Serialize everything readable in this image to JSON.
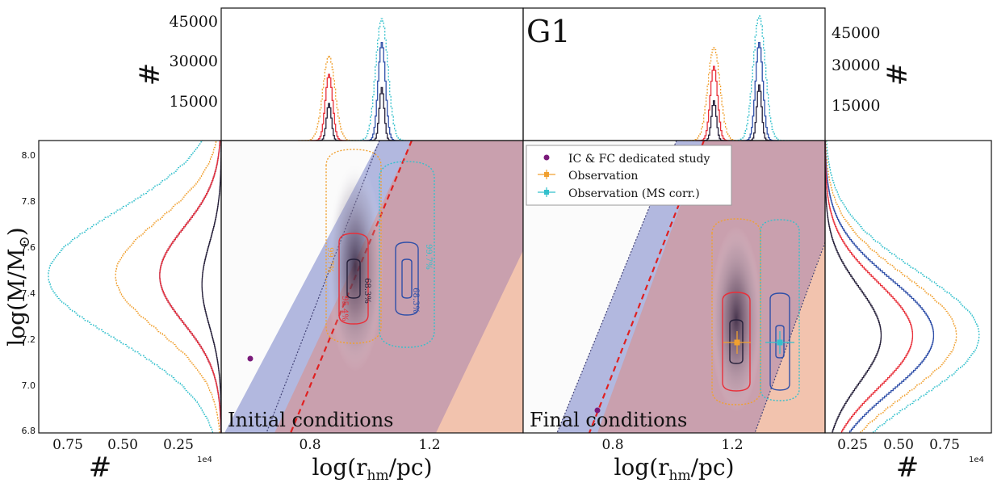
{
  "colors": {
    "dark": "#26203a",
    "red": "#e8303a",
    "blue": "#2f4fa8",
    "orange": "#f0a030",
    "cyan": "#33c0cc",
    "purple": "#7a1a7a",
    "band_blue": "#aab0dc",
    "band_mauve": "#cc9ba6",
    "band_peach": "#f6c7ae"
  },
  "figure": {
    "ylabel_left": "log(M/M",
    "ylabel_sun": "⊙",
    "hist_label": "#",
    "xlabel_main": "log(r",
    "xlabel_sub": "hm",
    "xlabel_tail": "/pc)",
    "sci_offset": "1e4",
    "panel_title": "G1"
  },
  "chart_data": [
    {
      "type": "histogram",
      "panel": "top-left",
      "axis": "log(r_hm/pc)",
      "ylabel": "#",
      "yticks": [
        15000,
        30000,
        45000
      ],
      "ylim": [
        0,
        50000
      ],
      "peaks": [
        {
          "series": "orange",
          "center": 0.955,
          "height": 32000
        },
        {
          "series": "red",
          "center": 0.955,
          "height": 25000
        },
        {
          "series": "dark",
          "center": 0.955,
          "height": 14000
        },
        {
          "series": "cyan",
          "center": 1.13,
          "height": 46000
        },
        {
          "series": "blue",
          "center": 1.13,
          "height": 37000
        },
        {
          "series": "dark",
          "center": 1.13,
          "height": 20000
        }
      ]
    },
    {
      "type": "histogram",
      "panel": "top-right",
      "title": "G1",
      "axis": "log(r_hm/pc)",
      "ylabel": "#",
      "yticks": [
        15000,
        30000,
        45000
      ],
      "ylim": [
        0,
        50000
      ],
      "peaks": [
        {
          "series": "orange",
          "center": 1.23,
          "height": 35000
        },
        {
          "series": "red",
          "center": 1.23,
          "height": 28000
        },
        {
          "series": "dark",
          "center": 1.23,
          "height": 15000
        },
        {
          "series": "cyan",
          "center": 1.38,
          "height": 47000
        },
        {
          "series": "blue",
          "center": 1.38,
          "height": 37000
        },
        {
          "series": "dark",
          "center": 1.38,
          "height": 21000
        }
      ]
    },
    {
      "type": "histogram",
      "panel": "left",
      "orientation": "horizontal",
      "axis": "log(M/M_sun)",
      "xlabel": "#",
      "xticks": [
        "0.75",
        "0.50",
        "0.25"
      ],
      "xlim": [
        0.95,
        0
      ],
      "ylim": [
        6.78,
        8.05
      ],
      "yticks": [
        6.8,
        7.0,
        7.2,
        7.4,
        7.6,
        7.8,
        8.0
      ],
      "peaks": [
        {
          "series": "cyan",
          "center": 7.46,
          "width": 0.9
        },
        {
          "series": "orange",
          "center": 7.46,
          "width": 0.55
        },
        {
          "series": "blue",
          "center": 7.46,
          "width": 0.32
        },
        {
          "series": "red",
          "center": 7.46,
          "width": 0.32
        },
        {
          "series": "dark",
          "center": 7.42,
          "width": 0.1
        }
      ]
    },
    {
      "type": "scatter",
      "panel": "initial",
      "label": "Initial conditions",
      "xlabel": "log(r_hm/pc)",
      "xticks": [
        0.8,
        1.2
      ],
      "xlim": [
        0.6,
        1.6
      ],
      "ylim": [
        6.78,
        8.05
      ],
      "contour_labels": [
        "99.7%",
        "95.4%",
        "68.3%",
        "68.3%",
        "99.7%"
      ],
      "points": [
        {
          "x": 0.7,
          "y": 7.1,
          "series": "IC & FC dedicated study"
        }
      ]
    },
    {
      "type": "scatter",
      "panel": "final",
      "label": "Final conditions",
      "xlabel": "log(r_hm/pc)",
      "xticks": [
        0.8,
        1.2
      ],
      "xlim": [
        0.6,
        1.6
      ],
      "ylim": [
        6.78,
        8.05
      ],
      "points": [
        {
          "x": 0.82,
          "y": 6.88,
          "series": "IC & FC dedicated study"
        }
      ],
      "observations": [
        {
          "series": "Observation",
          "x": 1.23,
          "y": 7.17
        },
        {
          "series": "Observation (MS corr.)",
          "x": 1.38,
          "y": 7.17
        }
      ],
      "legend": {
        "placement": "top-left",
        "entries": [
          "IC & FC dedicated study",
          "Observation",
          "Observation (MS corr.)"
        ]
      }
    },
    {
      "type": "histogram",
      "panel": "right",
      "orientation": "horizontal",
      "axis": "log(M/M_sun)",
      "xlabel": "#",
      "xticks": [
        "0.25",
        "0.50",
        "0.75"
      ],
      "xlim": [
        0,
        0.95
      ],
      "ylim": [
        6.78,
        8.05
      ],
      "peaks": [
        {
          "series": "cyan",
          "center": 7.2,
          "width": 0.88
        },
        {
          "series": "orange",
          "center": 7.2,
          "width": 0.75
        },
        {
          "series": "blue",
          "center": 7.2,
          "width": 0.62
        },
        {
          "series": "red",
          "center": 7.2,
          "width": 0.5
        },
        {
          "series": "dark",
          "center": 7.2,
          "width": 0.32
        }
      ]
    }
  ]
}
